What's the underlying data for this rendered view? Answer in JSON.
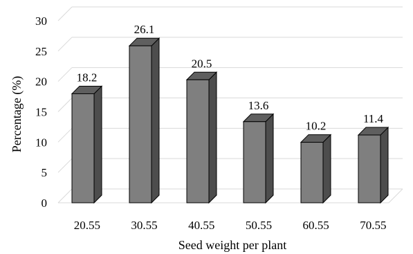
{
  "chart_data": {
    "type": "bar",
    "title": "",
    "xlabel": "Seed weight per plant",
    "ylabel": "Percentage (%)",
    "categories": [
      "20.55",
      "30.55",
      "40.55",
      "50.55",
      "60.55",
      "70.55"
    ],
    "values": [
      18.2,
      26.1,
      20.5,
      13.6,
      10.2,
      11.4
    ],
    "data_labels": [
      "18.2",
      "26.1",
      "20.5",
      "13.6",
      "10.2",
      "11.4"
    ],
    "ylim": [
      0,
      30
    ],
    "yticks": [
      "0",
      "5",
      "10",
      "15",
      "20",
      "25",
      "30"
    ],
    "grid": true,
    "legend": "none",
    "style": "3d-column",
    "colors": {
      "bar_front": "#7f7f7f",
      "bar_side": "#4d4d4d",
      "bar_top": "#5f5f5f",
      "bar_edge": "#000000",
      "grid": "#d9d9d9"
    }
  }
}
